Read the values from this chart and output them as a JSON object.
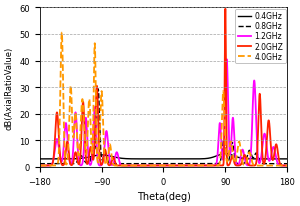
{
  "title": "",
  "xlabel": "Theta(deg)",
  "ylabel": "dB(AxialRatioValue)",
  "xlim": [
    -180,
    180
  ],
  "ylim": [
    0,
    60
  ],
  "xticks": [
    -180,
    -90,
    0,
    90,
    180
  ],
  "yticks": [
    0,
    10,
    20,
    30,
    40,
    50,
    60
  ],
  "legend": [
    "0.4GHz",
    "0.8GHz",
    "1.2GHz",
    "2.0GHZ",
    "4.0GHz"
  ],
  "colors": [
    "#000000",
    "#000000",
    "#ff00ff",
    "#ff2200",
    "#ff9900"
  ],
  "linestyles": [
    "-",
    "--",
    "-",
    "-",
    "--"
  ],
  "linewidths": [
    1.0,
    1.0,
    1.3,
    1.3,
    1.3
  ],
  "background_color": "#ffffff"
}
